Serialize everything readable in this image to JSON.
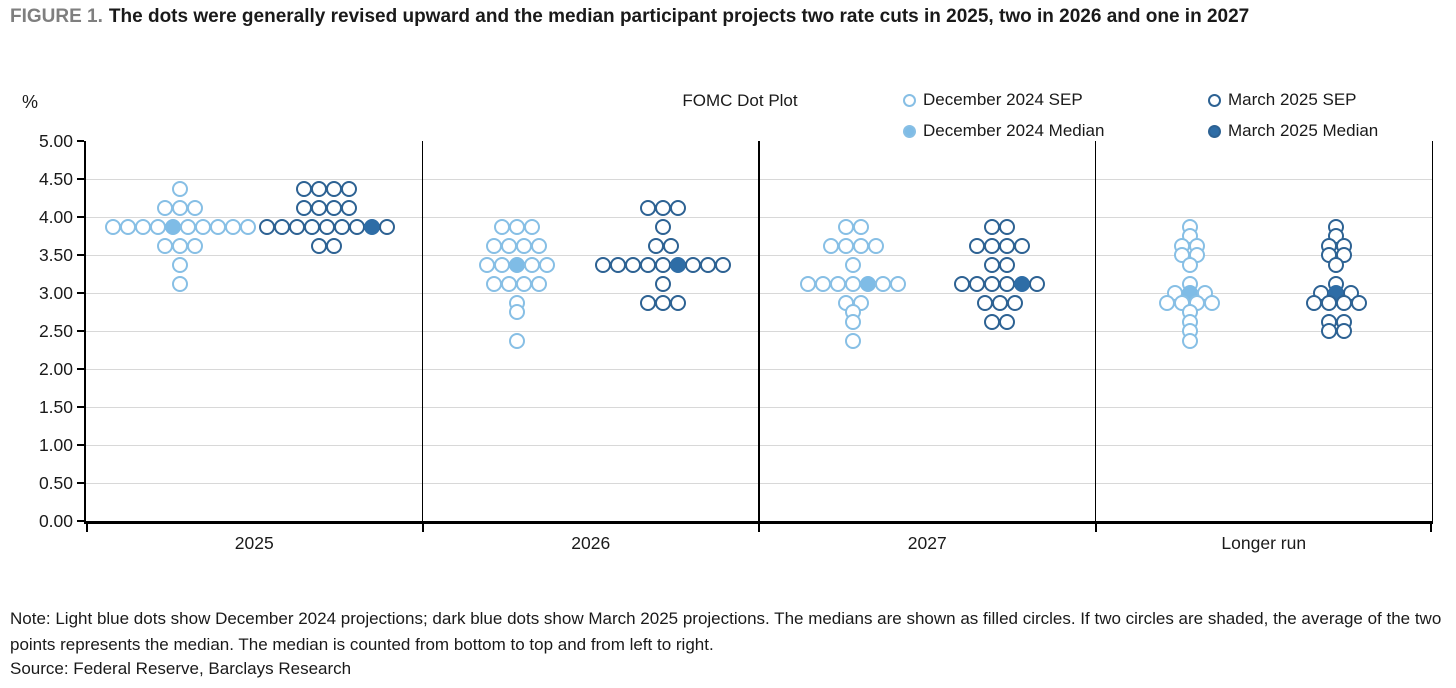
{
  "figure": {
    "label": "FIGURE 1.",
    "title": "The dots were generally revised upward and the median participant projects two rate cuts in 2025, two in 2026 and one in 2027"
  },
  "legend": [
    {
      "label": "December 2024 SEP",
      "marker": "open",
      "stroke": "#87bfe5",
      "fill": "#ffffff"
    },
    {
      "label": "March 2025 SEP",
      "marker": "open",
      "stroke": "#2d6293",
      "fill": "#ffffff"
    },
    {
      "label": "December 2024 Median",
      "marker": "filled",
      "stroke": "#87bfe5",
      "fill": "#7fbce6"
    },
    {
      "label": "March 2025 Median",
      "marker": "filled",
      "stroke": "#2d6293",
      "fill": "#2e6da6"
    }
  ],
  "note": "Note: Light blue dots show December 2024 projections; dark blue dots show March 2025 projections. The medians are shown as filled circles. If two circles are shaded, the average of the two points represents the median. The median is counted from bottom to top and from left to right.",
  "source": "Source: Federal Reserve, Barclays Research",
  "chart_data": {
    "type": "scatter",
    "title": "FOMC Dot Plot",
    "ylabel": "%",
    "ylim": [
      0,
      5
    ],
    "ytick_step": 0.5,
    "yticks": [
      "5.00",
      "4.50",
      "4.00",
      "3.50",
      "3.00",
      "2.50",
      "2.00",
      "1.50",
      "1.00",
      "0.50",
      "0.00"
    ],
    "grid": true,
    "legend_position": "top-right",
    "colors": {
      "dec_stroke": "#87bfe5",
      "dec_fill": "#7fbce6",
      "mar_stroke": "#2d6293",
      "mar_fill": "#2e6da6"
    },
    "layout": {
      "dec_x_frac": 0.28,
      "mar_x_frac": 0.715,
      "dot_spacing": 15,
      "dot_size": 16,
      "dot_stroke": 2.5,
      "dividers": [
        0.25,
        0.5,
        0.75
      ],
      "bottom_ticks": [
        0,
        0.25,
        0.5,
        0.75,
        1
      ]
    },
    "panels": [
      {
        "label": "2025",
        "dec2024": [
          {
            "v": 4.375,
            "n": 1,
            "m": 0
          },
          {
            "v": 4.125,
            "n": 3,
            "m": 0
          },
          {
            "v": 3.875,
            "n": 10,
            "m": 5
          },
          {
            "v": 3.625,
            "n": 3,
            "m": 0
          },
          {
            "v": 3.375,
            "n": 1,
            "m": 0
          },
          {
            "v": 3.125,
            "n": 1,
            "m": 0
          }
        ],
        "mar2025": [
          {
            "v": 4.375,
            "n": 4,
            "m": 0
          },
          {
            "v": 4.125,
            "n": 4,
            "m": 0
          },
          {
            "v": 3.875,
            "n": 9,
            "m": 8
          },
          {
            "v": 3.625,
            "n": 2,
            "m": 0
          }
        ]
      },
      {
        "label": "2026",
        "dec2024": [
          {
            "v": 3.875,
            "n": 3,
            "m": 0
          },
          {
            "v": 3.625,
            "n": 4,
            "m": 0
          },
          {
            "v": 3.375,
            "n": 5,
            "m": 3
          },
          {
            "v": 3.125,
            "n": 4,
            "m": 0
          },
          {
            "v": 2.875,
            "n": 1,
            "m": 0
          },
          {
            "v": 2.75,
            "n": 1,
            "m": 0
          },
          {
            "v": 2.375,
            "n": 1,
            "m": 0
          }
        ],
        "mar2025": [
          {
            "v": 4.125,
            "n": 3,
            "m": 0
          },
          {
            "v": 3.875,
            "n": 1,
            "m": 0
          },
          {
            "v": 3.625,
            "n": 2,
            "m": 0
          },
          {
            "v": 3.375,
            "n": 9,
            "m": 6
          },
          {
            "v": 3.125,
            "n": 1,
            "m": 0
          },
          {
            "v": 2.875,
            "n": 3,
            "m": 0
          }
        ]
      },
      {
        "label": "2027",
        "dec2024": [
          {
            "v": 3.875,
            "n": 2,
            "m": 0
          },
          {
            "v": 3.625,
            "n": 4,
            "m": 0
          },
          {
            "v": 3.375,
            "n": 1,
            "m": 0
          },
          {
            "v": 3.125,
            "n": 7,
            "m": 5
          },
          {
            "v": 2.875,
            "n": 2,
            "m": 0
          },
          {
            "v": 2.75,
            "n": 1,
            "m": 0
          },
          {
            "v": 2.625,
            "n": 1,
            "m": 0
          },
          {
            "v": 2.375,
            "n": 1,
            "m": 0
          }
        ],
        "mar2025": [
          {
            "v": 3.875,
            "n": 2,
            "m": 0
          },
          {
            "v": 3.625,
            "n": 4,
            "m": 0
          },
          {
            "v": 3.375,
            "n": 2,
            "m": 0
          },
          {
            "v": 3.125,
            "n": 6,
            "m": 5
          },
          {
            "v": 2.875,
            "n": 3,
            "m": 0
          },
          {
            "v": 2.625,
            "n": 2,
            "m": 0
          }
        ]
      },
      {
        "label": "Longer run",
        "dec2024": [
          {
            "v": 3.875,
            "n": 1,
            "m": 0
          },
          {
            "v": 3.75,
            "n": 1,
            "m": 0
          },
          {
            "v": 3.625,
            "n": 2,
            "m": 0
          },
          {
            "v": 3.5,
            "n": 2,
            "m": 0
          },
          {
            "v": 3.375,
            "n": 1,
            "m": 0
          },
          {
            "v": 3.125,
            "n": 1,
            "m": 0
          },
          {
            "v": 3.0,
            "n": 3,
            "m": 2
          },
          {
            "v": 2.875,
            "n": 4,
            "m": 0
          },
          {
            "v": 2.75,
            "n": 1,
            "m": 0
          },
          {
            "v": 2.625,
            "n": 1,
            "m": 0
          },
          {
            "v": 2.5,
            "n": 1,
            "m": 0
          },
          {
            "v": 2.375,
            "n": 1,
            "m": 0
          }
        ],
        "mar2025": [
          {
            "v": 3.875,
            "n": 1,
            "m": 0
          },
          {
            "v": 3.75,
            "n": 1,
            "m": 0
          },
          {
            "v": 3.625,
            "n": 2,
            "m": 0
          },
          {
            "v": 3.5,
            "n": 2,
            "m": 0
          },
          {
            "v": 3.375,
            "n": 1,
            "m": 0
          },
          {
            "v": 3.125,
            "n": 1,
            "m": 0
          },
          {
            "v": 3.0,
            "n": 3,
            "m": 2
          },
          {
            "v": 2.875,
            "n": 4,
            "m": 0
          },
          {
            "v": 2.625,
            "n": 2,
            "m": 0
          },
          {
            "v": 2.5,
            "n": 2,
            "m": 0
          }
        ]
      }
    ]
  }
}
